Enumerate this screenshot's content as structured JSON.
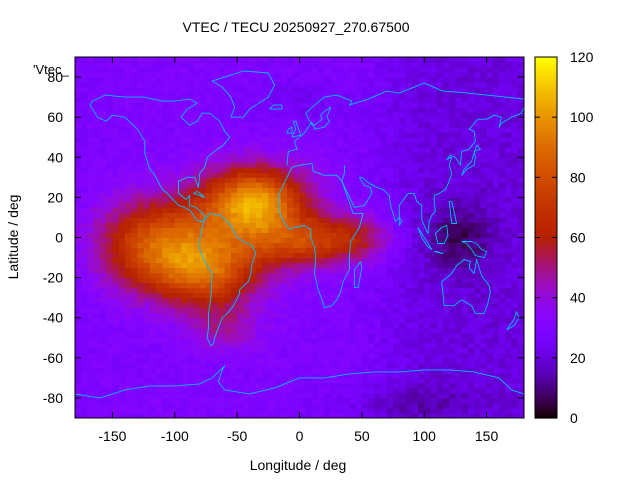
{
  "chart_data": {
    "type": "heatmap",
    "title": "VTEC / TECU 20250927_270.67500",
    "xlabel": "Longitude / deg",
    "ylabel": "Latitude / deg",
    "legend_key": "'Vtec_",
    "xlim": [
      -180,
      180
    ],
    "ylim": [
      -90,
      90
    ],
    "x_ticks": [
      -150,
      -100,
      -50,
      0,
      50,
      100,
      150
    ],
    "y_ticks": [
      -80,
      -60,
      -40,
      -20,
      0,
      20,
      40,
      60,
      80
    ],
    "colorbar": {
      "range": [
        0,
        120
      ],
      "ticks": [
        0,
        20,
        40,
        60,
        80,
        100,
        120
      ],
      "palette": "black-purple-red-orange-yellow"
    },
    "grid": false,
    "cell_size_deg": {
      "lon": 5,
      "lat": 2.5
    },
    "tec_structure": {
      "background_day": 30,
      "background_night": 18,
      "blobs": [
        {
          "lon": -35,
          "lat": 18,
          "sigma_lon": 28,
          "sigma_lat": 12,
          "amp": 70
        },
        {
          "lon": -95,
          "lat": -2,
          "sigma_lon": 38,
          "sigma_lat": 16,
          "amp": 45
        },
        {
          "lon": -75,
          "lat": -18,
          "sigma_lon": 30,
          "sigma_lat": 12,
          "amp": 40
        },
        {
          "lon": 0,
          "lat": -2,
          "sigma_lon": 30,
          "sigma_lat": 9,
          "amp": 38
        },
        {
          "lon": 45,
          "lat": 0,
          "sigma_lon": 22,
          "sigma_lat": 8,
          "amp": 22
        },
        {
          "lon": -130,
          "lat": -5,
          "sigma_lon": 25,
          "sigma_lat": 14,
          "amp": 18
        },
        {
          "lon": -60,
          "lat": -45,
          "sigma_lon": 20,
          "sigma_lat": 8,
          "amp": 15
        }
      ],
      "dark_spots": [
        {
          "lon": 128,
          "lat": 0,
          "sigma_lon": 18,
          "sigma_lat": 12,
          "amp": 14
        },
        {
          "lon": 0,
          "lat": 68,
          "sigma_lon": 30,
          "sigma_lat": 8,
          "amp": 6
        },
        {
          "lon": 80,
          "lat": -82,
          "sigma_lon": 40,
          "sigma_lat": 6,
          "amp": 8
        }
      ]
    },
    "coastline_color": "#00bfff"
  }
}
